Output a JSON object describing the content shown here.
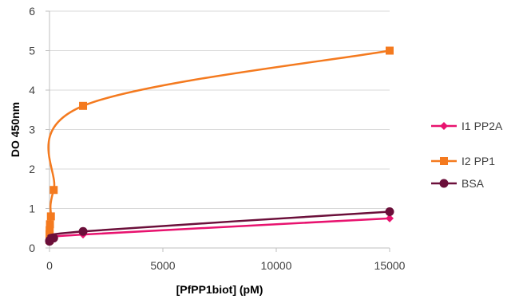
{
  "chart_data": {
    "type": "scatter",
    "title": "",
    "xlabel": "[PfPP1biot] (pM)",
    "ylabel": "DO 450nm",
    "xlim": [
      0,
      15000
    ],
    "ylim": [
      0,
      6
    ],
    "xticks": [
      0,
      5000,
      10000,
      15000
    ],
    "yticks": [
      0,
      1,
      2,
      3,
      4,
      5,
      6
    ],
    "grid": true,
    "legend_position": "right",
    "series": [
      {
        "name": "I1 PP2A",
        "color": "#E8136F",
        "marker": "diamond",
        "x": [
          0,
          2.3,
          6.9,
          20.6,
          61.7,
          185,
          1480,
          15000
        ],
        "y": [
          0.16,
          0.17,
          0.18,
          0.2,
          0.22,
          0.25,
          0.34,
          0.75
        ]
      },
      {
        "name": "I2 PP1",
        "color": "#F47A1F",
        "marker": "square",
        "x": [
          0,
          2.3,
          6.9,
          20.6,
          61.7,
          185,
          1480,
          15000
        ],
        "y": [
          0.2,
          0.35,
          0.45,
          0.6,
          0.8,
          1.47,
          3.6,
          5.0
        ]
      },
      {
        "name": "BSA",
        "color": "#6B0F3A",
        "marker": "circle",
        "x": [
          0,
          2.3,
          6.9,
          20.6,
          61.7,
          185,
          1480,
          15000
        ],
        "y": [
          0.17,
          0.18,
          0.19,
          0.2,
          0.22,
          0.25,
          0.42,
          0.92
        ]
      }
    ]
  }
}
